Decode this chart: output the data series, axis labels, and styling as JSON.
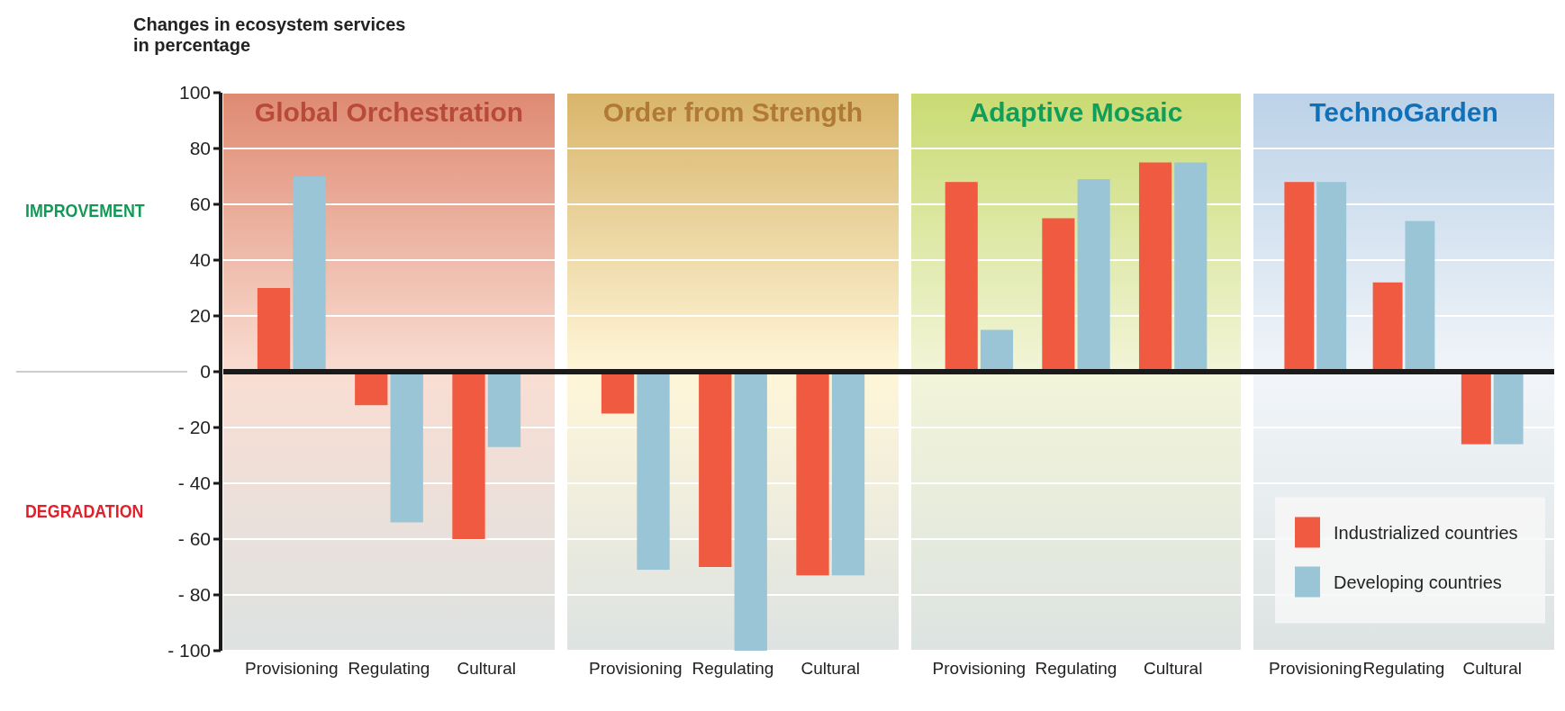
{
  "chart_data": [
    {
      "type": "bar",
      "title": "Global Orchestration",
      "ylabel": "Changes in ecosystem services\nin percentage",
      "categories": [
        "Provisioning",
        "Regulating",
        "Cultural"
      ],
      "ylim": [
        -100,
        100
      ],
      "yticks": [
        {
          "value": -100,
          "label": "- 100"
        },
        {
          "value": -80,
          "label": "- 80"
        },
        {
          "value": -60,
          "label": "- 60"
        },
        {
          "value": -40,
          "label": "- 40"
        },
        {
          "value": -20,
          "label": "- 20"
        },
        0,
        20,
        40,
        60,
        80,
        100
      ],
      "grid": "y",
      "annotations": [
        "IMPROVEMENT",
        "DEGRADATION"
      ],
      "series": [
        {
          "color": "#f05a40",
          "values": [
            30,
            -12,
            -60
          ]
        },
        {
          "color": "#9ac5d6",
          "values": [
            70,
            -54,
            -27
          ]
        }
      ]
    },
    {
      "type": "bar",
      "title": "Order from Strength",
      "categories": [
        "Provisioning",
        "Regulating",
        "Cultural"
      ],
      "ylim": [
        -100,
        100
      ],
      "yticks": [
        -100,
        -80,
        -60,
        -40,
        -20,
        0,
        20,
        40,
        60,
        80,
        100
      ],
      "grid": "y",
      "tick_labels": false,
      "series": [
        {
          "color": "#f05a40",
          "values": [
            -15,
            -70,
            -73
          ]
        },
        {
          "color": "#9ac5d6",
          "values": [
            -71,
            -100,
            -73
          ]
        }
      ]
    },
    {
      "type": "bar",
      "title": "Adaptive Mosaic",
      "categories": [
        "Provisioning",
        "Regulating",
        "Cultural"
      ],
      "ylim": [
        -100,
        100
      ],
      "yticks": [
        -100,
        -80,
        -60,
        -40,
        -20,
        0,
        20,
        40,
        60,
        80,
        100
      ],
      "grid": "y",
      "tick_labels": false,
      "series": [
        {
          "color": "#f05a40",
          "values": [
            68,
            55,
            75
          ]
        },
        {
          "color": "#9ac5d6",
          "values": [
            15,
            69,
            75
          ]
        }
      ]
    },
    {
      "type": "bar",
      "title": "TechnoGarden",
      "categories": [
        "Provisioning",
        "Regulating",
        "Cultural"
      ],
      "ylim": [
        -100,
        100
      ],
      "yticks": [
        -100,
        -80,
        -60,
        -40,
        -20,
        0,
        20,
        40,
        60,
        80,
        100
      ],
      "grid": "y",
      "tick_labels": false,
      "legend": "bottom right",
      "series": [
        {
          "name": "Industrialized countries",
          "color": "#f05a40",
          "values": [
            68,
            32,
            -26
          ]
        },
        {
          "name": "Developing countries",
          "color": "#9ac5d6",
          "values": [
            68,
            54,
            -26
          ]
        }
      ]
    }
  ]
}
